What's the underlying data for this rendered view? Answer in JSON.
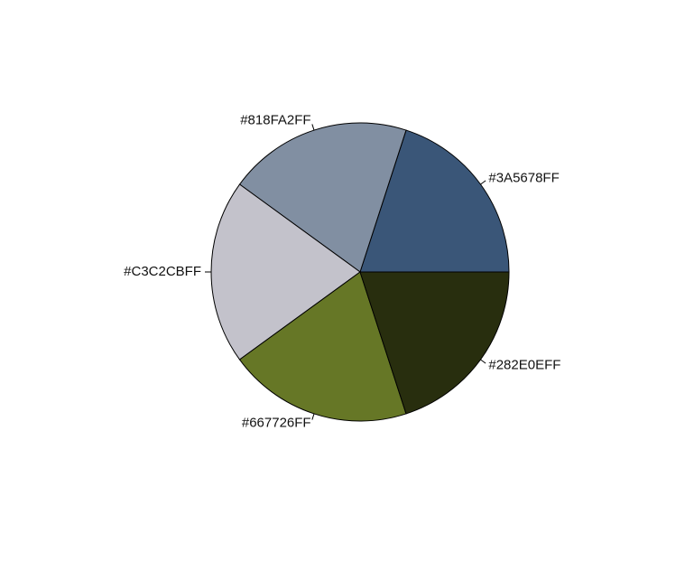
{
  "chart_data": {
    "type": "pie",
    "title": "",
    "labels": [
      "#3A5678FF",
      "#818FA2FF",
      "#C3C2CBFF",
      "#667726FF",
      "#282E0EFF"
    ],
    "values": [
      1,
      1,
      1,
      1,
      1
    ],
    "colors": [
      "#3A5678",
      "#818FA2",
      "#C3C2CB",
      "#667726",
      "#282E0E"
    ],
    "start_angle_deg": 0,
    "direction": "counterclockwise"
  }
}
